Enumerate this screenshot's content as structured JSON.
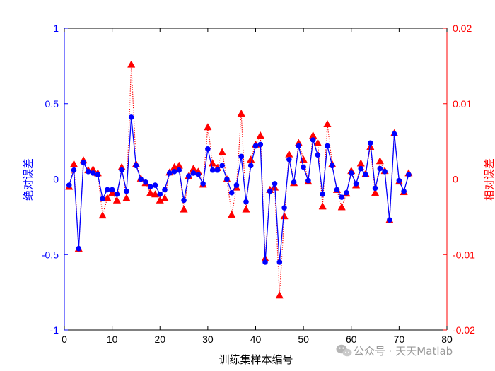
{
  "chart_data": {
    "type": "line",
    "xlabel": "训练集样本编号",
    "ylabel_left": "绝对误差",
    "ylabel_right": "相对误差",
    "xlim": [
      0,
      80
    ],
    "xticks": [
      0,
      10,
      20,
      30,
      40,
      50,
      60,
      70,
      80
    ],
    "ylim_left": [
      -1,
      1
    ],
    "yticks_left": [
      -1,
      -0.5,
      0,
      0.5,
      1
    ],
    "ylim_right": [
      -0.02,
      0.02
    ],
    "yticks_right": [
      -0.02,
      -0.01,
      0,
      0.01,
      0.02
    ],
    "grid": false,
    "colors": {
      "left_axis": "#0000ff",
      "right_axis": "#ff0000",
      "series_abs": "#0000ff",
      "series_rel": "#ff0000",
      "x_axis": "#000000"
    },
    "x": [
      1,
      2,
      3,
      4,
      5,
      6,
      7,
      8,
      9,
      10,
      11,
      12,
      13,
      14,
      15,
      16,
      17,
      18,
      19,
      20,
      21,
      22,
      23,
      24,
      25,
      26,
      27,
      28,
      29,
      30,
      31,
      32,
      33,
      34,
      35,
      36,
      37,
      38,
      39,
      40,
      41,
      42,
      43,
      44,
      45,
      46,
      47,
      48,
      49,
      50,
      51,
      52,
      53,
      54,
      55,
      56,
      57,
      58,
      59,
      60,
      61,
      62,
      63,
      64,
      65,
      66,
      67,
      68,
      69,
      70,
      71,
      72
    ],
    "series": [
      {
        "axis": "left",
        "style": "solid-circle",
        "values": [
          -0.04,
          0.06,
          -0.46,
          0.11,
          0.05,
          0.04,
          0.03,
          -0.13,
          -0.07,
          -0.07,
          -0.1,
          0.06,
          -0.08,
          0.41,
          0.09,
          0.0,
          -0.02,
          -0.05,
          -0.04,
          -0.1,
          -0.07,
          0.04,
          0.05,
          0.06,
          -0.14,
          0.02,
          0.04,
          0.03,
          -0.03,
          0.2,
          0.06,
          0.06,
          0.09,
          0.0,
          -0.09,
          -0.04,
          0.15,
          -0.15,
          0.09,
          0.22,
          0.23,
          -0.55,
          -0.08,
          -0.03,
          -0.55,
          -0.19,
          0.13,
          -0.02,
          0.22,
          0.08,
          -0.01,
          0.26,
          0.16,
          -0.1,
          0.22,
          0.09,
          -0.07,
          -0.12,
          -0.09,
          0.04,
          -0.03,
          0.07,
          0.03,
          0.24,
          -0.06,
          0.07,
          0.05,
          -0.27,
          0.3,
          -0.01,
          -0.08,
          0.03
        ]
      },
      {
        "axis": "right",
        "style": "dotted-triangle",
        "values": [
          -0.001,
          0.002,
          -0.0092,
          0.0025,
          0.0012,
          0.0013,
          0.0008,
          -0.0048,
          -0.0025,
          -0.0018,
          -0.0028,
          0.0016,
          -0.0025,
          0.0152,
          0.002,
          0.0001,
          -0.0005,
          -0.0018,
          -0.002,
          -0.0028,
          -0.0025,
          0.0009,
          0.0016,
          0.0018,
          -0.004,
          0.0004,
          0.0014,
          0.001,
          -0.0007,
          0.0069,
          0.0021,
          0.0015,
          0.0036,
          0.0,
          -0.0047,
          -0.0011,
          0.0087,
          -0.004,
          0.0026,
          0.0046,
          0.0058,
          -0.0105,
          -0.0014,
          -0.0011,
          -0.0154,
          -0.0049,
          0.0033,
          -0.0005,
          0.0048,
          0.0026,
          -0.0003,
          0.0058,
          0.0048,
          -0.0036,
          0.0073,
          0.002,
          -0.0014,
          -0.0037,
          -0.0019,
          0.0011,
          -0.0008,
          0.0021,
          0.0007,
          0.0043,
          -0.0018,
          0.0024,
          0.0011,
          -0.0054,
          0.0061,
          -0.0003,
          -0.0017,
          0.0008
        ]
      }
    ]
  },
  "watermark": {
    "icon": "wechat-icon",
    "text": "公众号 · 天天Matlab"
  }
}
